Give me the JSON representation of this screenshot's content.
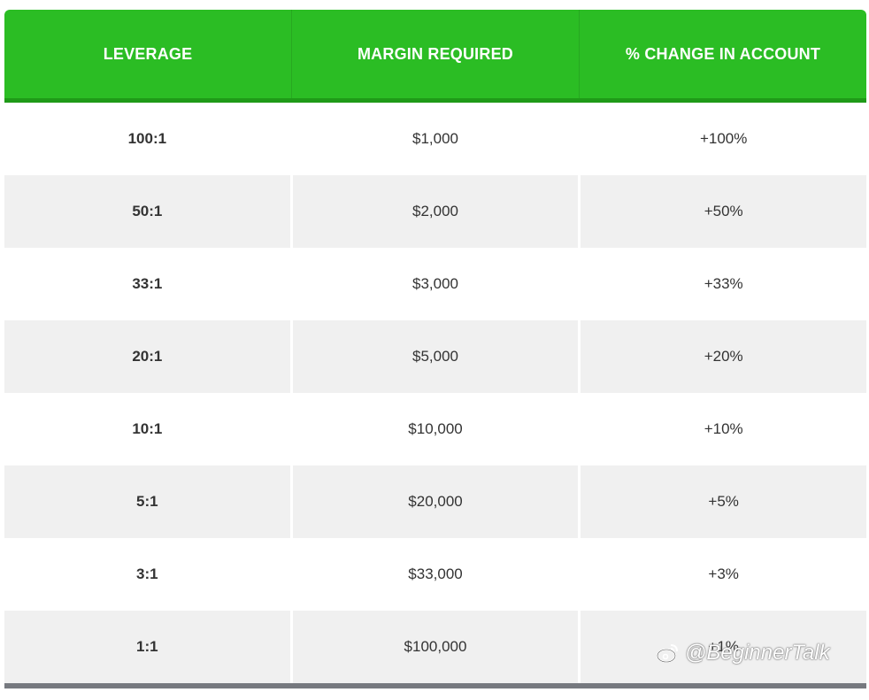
{
  "table": {
    "headers": [
      "LEVERAGE",
      "MARGIN REQUIRED",
      "% CHANGE IN ACCOUNT"
    ],
    "rows": [
      {
        "leverage": "100:1",
        "margin": "$1,000",
        "change": "+100%"
      },
      {
        "leverage": "50:1",
        "margin": "$2,000",
        "change": "+50%"
      },
      {
        "leverage": "33:1",
        "margin": "$3,000",
        "change": "+33%"
      },
      {
        "leverage": "20:1",
        "margin": "$5,000",
        "change": "+20%"
      },
      {
        "leverage": "10:1",
        "margin": "$10,000",
        "change": "+10%"
      },
      {
        "leverage": "5:1",
        "margin": "$20,000",
        "change": "+5%"
      },
      {
        "leverage": "3:1",
        "margin": "$33,000",
        "change": "+3%"
      },
      {
        "leverage": "1:1",
        "margin": "$100,000",
        "change": "+1%"
      }
    ]
  },
  "watermark": {
    "text": "@BeginnerTalk",
    "icon": "weibo-icon"
  },
  "colors": {
    "header_bg": "#2bbd24",
    "header_border": "#1f9a18",
    "alt_row": "#f0f0f0",
    "footer_bar": "#76797f"
  }
}
